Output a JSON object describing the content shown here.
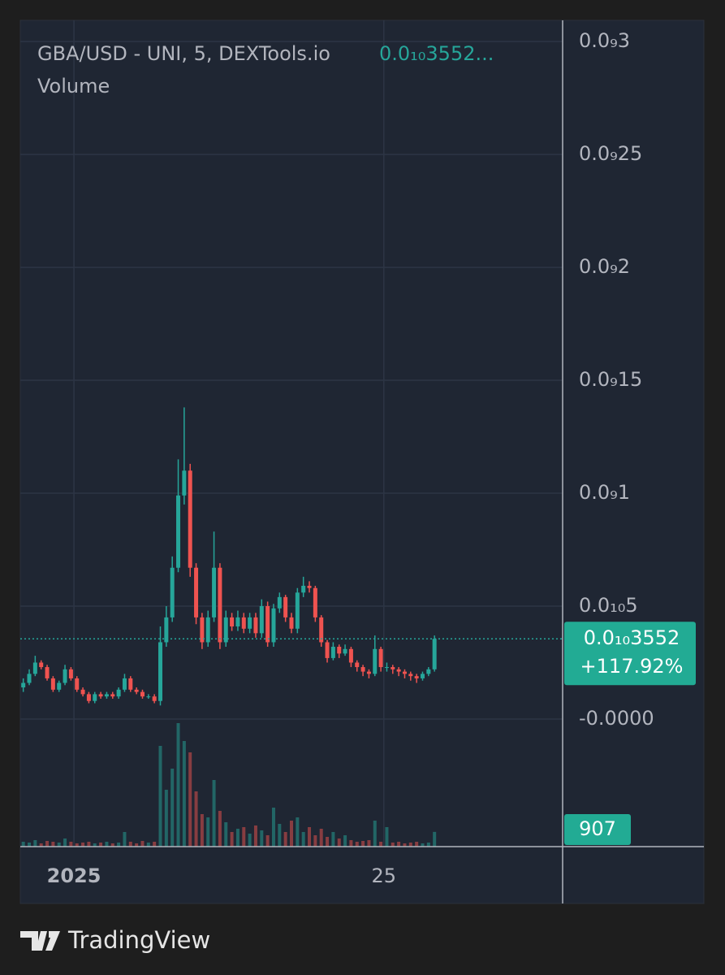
{
  "chart_data": {
    "type": "candlestick",
    "title": "GBA/USD - UNI, 5, DEXTools.io",
    "legend_price": "0.0₁₀3552...",
    "volume_title": "Volume",
    "up_color": "#26a69a",
    "down_color": "#ef5350",
    "grid": true,
    "xlim": [
      0,
      91
    ],
    "xticks": [
      {
        "value": 9,
        "label": "2025"
      },
      {
        "value": 61,
        "label": "25"
      }
    ],
    "ylim": [
      -5.65e-11,
      3.094e-10
    ],
    "yticks": [
      {
        "value": 3e-10,
        "label": "0.0₉3"
      },
      {
        "value": 2.5e-10,
        "label": "0.0₉25"
      },
      {
        "value": 2e-10,
        "label": "0.0₉2"
      },
      {
        "value": 1.5e-10,
        "label": "0.0₉15"
      },
      {
        "value": 1e-10,
        "label": "0.0₉1"
      },
      {
        "value": 5e-11,
        "label": "0.0₁₀5"
      },
      {
        "value": 0,
        "label": "-0.0000"
      }
    ],
    "open": [
      1.4e-11,
      1.6e-11,
      2e-11,
      2.5e-11,
      2.3e-11,
      1.8e-11,
      1.3e-11,
      1.6e-11,
      2.2e-11,
      1.8e-11,
      1.3e-11,
      1.1e-11,
      8e-12,
      1.1e-11,
      1e-11,
      1.1e-11,
      1e-11,
      1.3e-11,
      1.8e-11,
      1.3e-11,
      1.2e-11,
      1e-11,
      1e-11,
      8e-12,
      3.4e-11,
      4.5e-11,
      6.7e-11,
      9.9e-11,
      1.1e-10,
      6.7e-11,
      4.5e-11,
      3.4e-11,
      4.5e-11,
      6.7e-11,
      3.4e-11,
      4.5e-11,
      4.1e-11,
      4.5e-11,
      4e-11,
      4.5e-11,
      3.8e-11,
      5e-11,
      3.4e-11,
      4.9e-11,
      5.4e-11,
      4.5e-11,
      4e-11,
      5.6e-11,
      5.9e-11,
      5.8e-11,
      4.5e-11,
      3.4e-11,
      2.7e-11,
      3.2e-11,
      2.9e-11,
      3.1e-11,
      2.5e-11,
      2.3e-11,
      2.1e-11,
      2e-11,
      3.1e-11,
      2.3e-11,
      2.3e-11,
      2.2e-11,
      2.1e-11,
      2e-11,
      1.9e-11,
      1.8e-11,
      2e-11,
      2.2e-11
    ],
    "high": [
      1.8e-11,
      2.2e-11,
      2.8e-11,
      2.6e-11,
      2.4e-11,
      1.9e-11,
      1.7e-11,
      2.4e-11,
      2.3e-11,
      1.9e-11,
      1.4e-11,
      1.2e-11,
      1.2e-11,
      1.2e-11,
      1.2e-11,
      1.2e-11,
      1.4e-11,
      2e-11,
      1.9e-11,
      1.4e-11,
      1.3e-11,
      1.1e-11,
      1.1e-11,
      4.1e-11,
      5e-11,
      7.2e-11,
      1.15e-10,
      1.38e-10,
      1.13e-10,
      6.9e-11,
      4.7e-11,
      4.8e-11,
      8.3e-11,
      6.9e-11,
      4.8e-11,
      4.7e-11,
      4.8e-11,
      4.7e-11,
      4.7e-11,
      4.7e-11,
      5.3e-11,
      5.2e-11,
      5.1e-11,
      5.6e-11,
      5.5e-11,
      4.7e-11,
      5.8e-11,
      6.3e-11,
      6.1e-11,
      5.9e-11,
      4.6e-11,
      3.5e-11,
      3.4e-11,
      3.3e-11,
      3.3e-11,
      3.2e-11,
      2.6e-11,
      2.4e-11,
      2.2e-11,
      3.7e-11,
      3.2e-11,
      2.5e-11,
      2.4e-11,
      2.3e-11,
      2.2e-11,
      2.1e-11,
      2e-11,
      2.1e-11,
      2.3e-11,
      3.7e-11
    ],
    "low": [
      1.2e-11,
      1.5e-11,
      1.9e-11,
      2.2e-11,
      1.7e-11,
      1.2e-11,
      1.2e-11,
      1.5e-11,
      1.7e-11,
      1.2e-11,
      1e-11,
      7e-12,
      7e-12,
      9e-12,
      9e-12,
      9e-12,
      9e-12,
      1.2e-11,
      1.2e-11,
      1.1e-11,
      9e-12,
      9e-12,
      7e-12,
      6e-12,
      3.2e-11,
      4.3e-11,
      6.5e-11,
      9.5e-11,
      6.3e-11,
      4.2e-11,
      3.1e-11,
      3.2e-11,
      4.3e-11,
      3.1e-11,
      3.2e-11,
      3.9e-11,
      3.9e-11,
      3.8e-11,
      3.8e-11,
      3.6e-11,
      3.6e-11,
      3.2e-11,
      3.2e-11,
      4.7e-11,
      4.3e-11,
      3.8e-11,
      3.8e-11,
      5.4e-11,
      5.6e-11,
      4.3e-11,
      3.2e-11,
      2.5e-11,
      2.6e-11,
      2.7e-11,
      2.8e-11,
      2.3e-11,
      2.1e-11,
      1.9e-11,
      1.8e-11,
      1.9e-11,
      2.1e-11,
      2.1e-11,
      2e-11,
      1.9e-11,
      1.8e-11,
      1.7e-11,
      1.6e-11,
      1.7e-11,
      1.9e-11,
      2.1e-11
    ],
    "close": [
      1.6e-11,
      2e-11,
      2.5e-11,
      2.3e-11,
      1.8e-11,
      1.3e-11,
      1.6e-11,
      2.2e-11,
      1.8e-11,
      1.3e-11,
      1.1e-11,
      8e-12,
      1.1e-11,
      1e-11,
      1.1e-11,
      1e-11,
      1.3e-11,
      1.8e-11,
      1.3e-11,
      1.2e-11,
      1e-11,
      1e-11,
      8e-12,
      3.4e-11,
      4.5e-11,
      6.7e-11,
      9.9e-11,
      1.1e-10,
      6.7e-11,
      4.5e-11,
      3.4e-11,
      4.5e-11,
      6.7e-11,
      3.4e-11,
      4.5e-11,
      4.1e-11,
      4.5e-11,
      4e-11,
      4.5e-11,
      3.8e-11,
      5e-11,
      3.4e-11,
      4.9e-11,
      5.4e-11,
      4.5e-11,
      4e-11,
      5.6e-11,
      5.9e-11,
      5.8e-11,
      4.5e-11,
      3.4e-11,
      2.7e-11,
      3.2e-11,
      2.9e-11,
      3.1e-11,
      2.5e-11,
      2.3e-11,
      2.1e-11,
      2e-11,
      3.1e-11,
      2.3e-11,
      2.3e-11,
      2.2e-11,
      2.1e-11,
      2e-11,
      1.9e-11,
      1.8e-11,
      2e-11,
      2.2e-11,
      3.552e-11
    ],
    "last_price": {
      "value": 3.552e-11,
      "label": "0.0₁₀3552"
    },
    "change": {
      "value": 117.92,
      "label": "+117.92%"
    },
    "volume": {
      "ylim": [
        0,
        8000
      ],
      "values": [
        300,
        250,
        400,
        200,
        350,
        300,
        250,
        500,
        300,
        200,
        250,
        300,
        200,
        250,
        300,
        200,
        250,
        900,
        300,
        200,
        350,
        250,
        300,
        6200,
        3500,
        4800,
        7600,
        6500,
        5800,
        3400,
        2000,
        1800,
        4100,
        2200,
        1500,
        900,
        1100,
        1200,
        800,
        1300,
        1000,
        700,
        2400,
        1400,
        900,
        1600,
        1800,
        900,
        1200,
        700,
        1100,
        600,
        900,
        500,
        700,
        400,
        300,
        350,
        400,
        1600,
        300,
        1200,
        250,
        300,
        200,
        250,
        300,
        200,
        250,
        907
      ]
    }
  },
  "branding": "TradingView"
}
